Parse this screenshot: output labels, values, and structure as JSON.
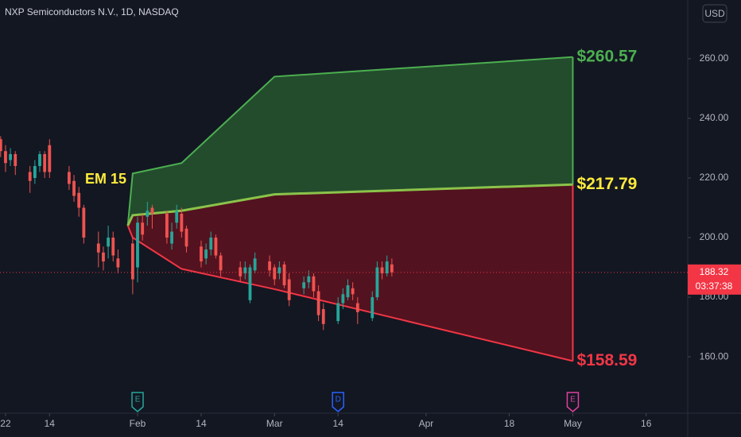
{
  "chart_data": {
    "type": "candlestick",
    "title": "NXP Semiconductors N.V., 1D, NASDAQ",
    "currency": "USD",
    "ylim": [
      141.1,
      279.7
    ],
    "yticks": [
      {
        "value": 160,
        "label": "160.00"
      },
      {
        "value": 180,
        "label": "180.00"
      },
      {
        "value": 200,
        "label": "200.00"
      },
      {
        "value": 220,
        "label": "220.00"
      },
      {
        "value": 240,
        "label": "240.00"
      },
      {
        "value": 260,
        "label": "260.00"
      }
    ],
    "xlim": [
      3.87,
      144.5
    ],
    "xticks": [
      {
        "value": 5,
        "label": "22"
      },
      {
        "value": 14,
        "label": "14"
      },
      {
        "value": 32,
        "label": "Feb"
      },
      {
        "value": 45,
        "label": "14"
      },
      {
        "value": 60,
        "label": "Mar"
      },
      {
        "value": 73,
        "label": "14"
      },
      {
        "value": 91,
        "label": "Apr"
      },
      {
        "value": 108,
        "label": "18"
      },
      {
        "value": 121,
        "label": "May"
      },
      {
        "value": 136,
        "label": "16"
      }
    ],
    "up_color": "#26a69a",
    "down_color": "#ef5350",
    "x": [
      3,
      4,
      5,
      6,
      7,
      10,
      11,
      12,
      13,
      14,
      18,
      19,
      20,
      21,
      24,
      25,
      26,
      27,
      28,
      31,
      32,
      33,
      34,
      35,
      38,
      39,
      40,
      41,
      42,
      45,
      46,
      47,
      48,
      49,
      53,
      54,
      55,
      56,
      59,
      60,
      61,
      62,
      63,
      66,
      67,
      68,
      69,
      70,
      73,
      74,
      75,
      76,
      77,
      80,
      81,
      82,
      83,
      84
    ],
    "open": [
      228,
      233,
      229,
      226,
      228,
      222,
      220,
      224,
      228,
      231,
      222,
      219,
      215,
      210,
      198,
      195,
      197,
      200,
      193,
      198,
      190,
      205,
      207,
      210,
      208,
      198,
      205,
      208,
      203,
      197,
      193,
      196,
      200,
      194,
      190,
      188,
      179,
      189,
      192,
      190,
      188,
      191,
      186,
      183,
      185,
      187,
      182,
      176,
      172,
      178,
      180,
      183,
      178,
      173,
      180,
      190,
      188,
      191
    ],
    "high": [
      235,
      234,
      231,
      230,
      229,
      224,
      226,
      229,
      229,
      233,
      224,
      221,
      217,
      211,
      202,
      197,
      204,
      202,
      196,
      200,
      207,
      208,
      212,
      211,
      209,
      205,
      211,
      210,
      204,
      199,
      198,
      202,
      201,
      195,
      192,
      192,
      191,
      195,
      194,
      191,
      192,
      192,
      188,
      187,
      189,
      188,
      184,
      178,
      180,
      183,
      186,
      185,
      180,
      182,
      192,
      192,
      194,
      193
    ],
    "low": [
      226,
      227,
      222,
      224,
      221,
      215,
      218,
      222,
      220,
      220,
      216,
      212,
      207,
      198,
      190,
      189,
      193,
      192,
      188,
      181,
      185,
      199,
      204,
      203,
      198,
      196,
      203,
      200,
      195,
      190,
      191,
      194,
      193,
      187,
      185,
      186,
      178,
      188,
      187,
      184,
      186,
      183,
      177,
      181,
      183,
      180,
      172,
      169,
      171,
      176,
      179,
      179,
      171,
      172,
      179,
      186,
      187,
      187
    ],
    "close": [
      233,
      229,
      225,
      228,
      224,
      219,
      224,
      228,
      222,
      222,
      218,
      214,
      210,
      200,
      195,
      192,
      200,
      194,
      190,
      186,
      205,
      201,
      209,
      208,
      200,
      202,
      209,
      202,
      197,
      192,
      196,
      200,
      194,
      189,
      187,
      190,
      190,
      193,
      189,
      186,
      190,
      184,
      179,
      185,
      187,
      182,
      174,
      171,
      178,
      181,
      184,
      181,
      175,
      180,
      190,
      188,
      192,
      188.32
    ],
    "last_price_label": "188.32",
    "countdown": "03:37:38",
    "annotation": "EM 15",
    "bands": {
      "x": [
        30,
        31,
        41,
        60,
        121
      ],
      "upper": {
        "color": "#4caf50",
        "values": [
          204,
          221.5,
          225,
          254,
          260.57
        ],
        "end_label": "$260.57"
      },
      "middle": {
        "color": "#ffeb3b",
        "values": [
          204,
          207.5,
          209,
          214.5,
          217.79
        ],
        "end_label": "$217.79"
      },
      "lower": {
        "color": "#f23645",
        "values": [
          204,
          200,
          189.5,
          182.7,
          158.59
        ],
        "end_label": "$158.59"
      }
    },
    "events": [
      {
        "x": 32,
        "label": "E",
        "color": "#26a69a"
      },
      {
        "x": 73,
        "label": "D",
        "color": "#2962ff"
      },
      {
        "x": 121,
        "label": "E",
        "color": "#e040a0"
      }
    ]
  }
}
